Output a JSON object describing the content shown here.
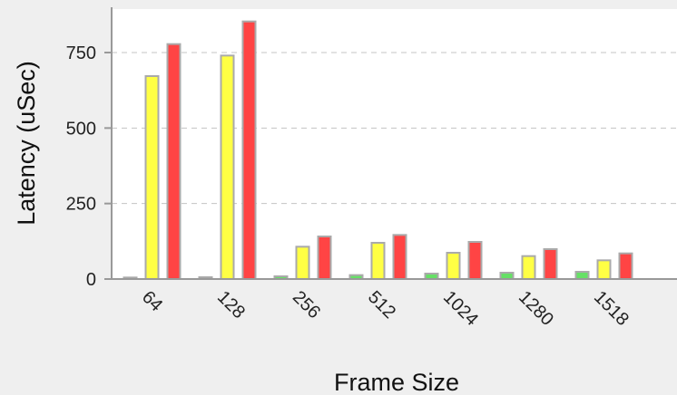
{
  "chart_data": {
    "type": "bar",
    "title": "",
    "xlabel": "Frame Size",
    "ylabel": "Latency (uSec)",
    "categories": [
      "64",
      "128",
      "256",
      "512",
      "1024",
      "1280",
      "1518"
    ],
    "ylim": [
      0,
      900
    ],
    "yticks": [
      0,
      250,
      500,
      750
    ],
    "grid": "horizontal-dashed",
    "legend": "none",
    "series": [
      {
        "values": [
          5,
          6,
          9,
          13,
          18,
          21,
          24
        ],
        "colors": [
          "#d9d9d9",
          "#d9d9d9",
          "#66e066",
          "#66e066",
          "#66e066",
          "#66e066",
          "#66e066"
        ]
      },
      {
        "values": [
          672,
          740,
          107,
          120,
          87,
          76,
          62
        ],
        "color": "#ffff44"
      },
      {
        "values": [
          778,
          853,
          141,
          146,
          123,
          99,
          85
        ],
        "color": "#ff4444"
      }
    ]
  }
}
